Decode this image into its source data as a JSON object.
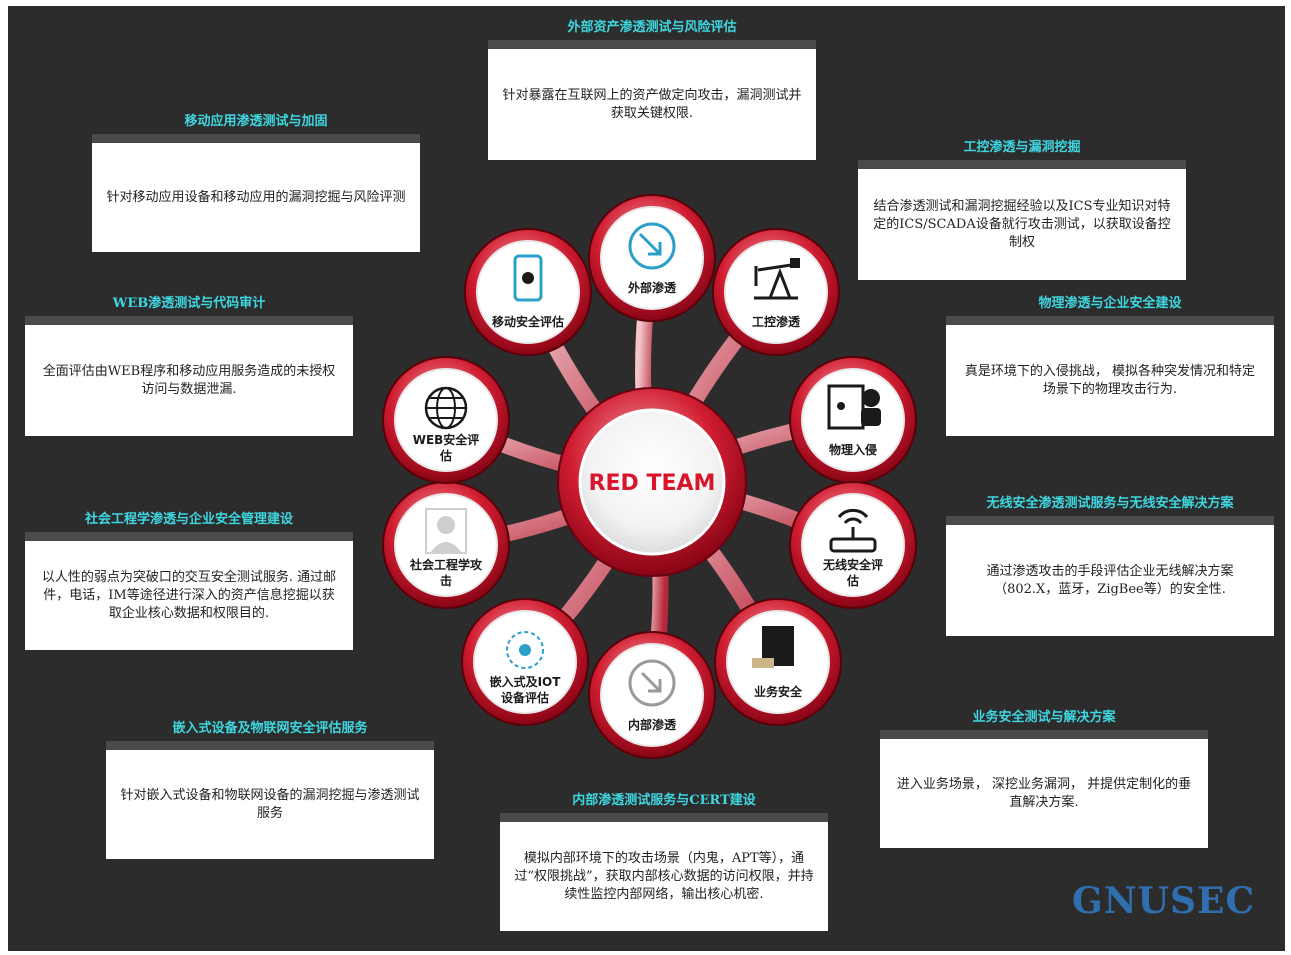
{
  "center": {
    "label": "RED TEAM"
  },
  "nodes": [
    {
      "label": "外部渗透",
      "icon": "external-penetration-icon"
    },
    {
      "label": "工控渗透",
      "icon": "pumpjack-icon"
    },
    {
      "label": "物理入侵",
      "icon": "safe-intruder-icon"
    },
    {
      "label": "无线安全评",
      "label2": "估",
      "icon": "wireless-router-icon"
    },
    {
      "label": "业务安全",
      "icon": "laptop-money-icon"
    },
    {
      "label": "内部渗透",
      "icon": "internal-penetration-icon"
    },
    {
      "label": "嵌入式及IOT",
      "label2": "设备评估",
      "icon": "iot-network-icon"
    },
    {
      "label": "社会工程学攻",
      "label2": "击",
      "icon": "person-silhouette-icon"
    },
    {
      "label": "WEB安全评",
      "label2": "估",
      "icon": "globe-icon"
    },
    {
      "label": "移动安全评估",
      "icon": "mobile-bug-icon"
    }
  ],
  "panels": [
    {
      "title": "外部资产渗透测试与风险评估",
      "text": "针对暴露在互联网上的资产做定向攻击，漏洞测试并获取关键权限."
    },
    {
      "title": "移动应用渗透测试与加固",
      "text": "针对移动应用设备和移动应用的漏洞挖掘与风险评测"
    },
    {
      "title": "工控渗透与漏洞挖掘",
      "text": "结合渗透测试和漏洞挖掘经验以及ICS专业知识对特定的ICS/SCADA设备就行攻击测试，以获取设备控制权"
    },
    {
      "title": "WEB渗透测试与代码审计",
      "text": "全面评估由WEB程序和移动应用服务造成的未授权访问与数据泄漏."
    },
    {
      "title": "物理渗透与企业安全建设",
      "text": "真是环境下的入侵挑战， 模拟各种突发情况和特定场景下的物理攻击行为."
    },
    {
      "title": "社会工程学渗透与企业安全管理建设",
      "text": "以人性的弱点为突破口的交互安全测试服务. 通过邮件，电话，IM等途径进行深入的资产信息挖掘以获取企业核心数据和权限目的."
    },
    {
      "title": "无线安全渗透测试服务与无线安全解决方案",
      "text": "通过渗透攻击的手段评估企业无线解决方案（802.X，蓝牙，ZigBee等）的安全性."
    },
    {
      "title": "嵌入式设备及物联网安全评估服务",
      "text": "针对嵌入式设备和物联网设备的漏洞挖掘与渗透测试服务"
    },
    {
      "title": "业务安全测试与解决方案",
      "text": "进入业务场景， 深挖业务漏洞， 并提供定制化的垂直解决方案."
    },
    {
      "title": "内部渗透测试服务与CERT建设",
      "text": "模拟内部环境下的攻击场景（内鬼，APT等），通过“权限挑战”，获取内部核心数据的访问权限，并持续性监控内部网络，输出核心机密."
    }
  ],
  "brand": {
    "text": "GNUSEC",
    "color": "#2f6fb0"
  },
  "colors": {
    "background": "#2c2c2c",
    "title": "#3fd6e0",
    "ring": "#c8102e",
    "icon": "#1a1a1a",
    "accent_icon": "#2aa0c8"
  }
}
